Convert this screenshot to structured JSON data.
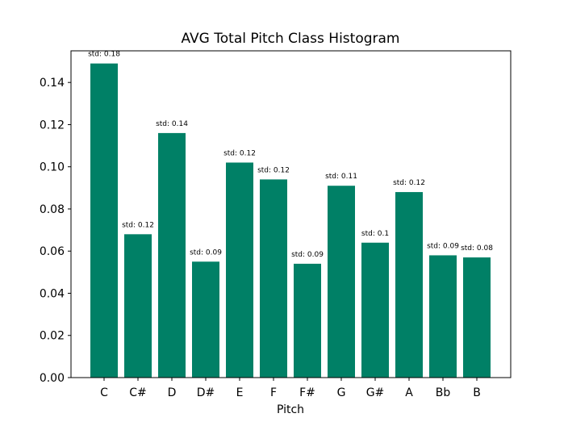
{
  "chart_data": {
    "type": "bar",
    "title": "AVG Total Pitch Class Histogram",
    "xlabel": "Pitch",
    "ylabel": "",
    "ylim": [
      0,
      0.155
    ],
    "yticks": [
      "0.00",
      "0.02",
      "0.04",
      "0.06",
      "0.08",
      "0.10",
      "0.12",
      "0.14"
    ],
    "grid": false,
    "legend": "none",
    "bar_color": "#008066",
    "categories": [
      "C",
      "C#",
      "D",
      "D#",
      "E",
      "F",
      "F#",
      "G",
      "G#",
      "A",
      "Bb",
      "B"
    ],
    "values": [
      0.149,
      0.068,
      0.116,
      0.055,
      0.102,
      0.094,
      0.054,
      0.091,
      0.064,
      0.088,
      0.058,
      0.057
    ],
    "annotations": [
      "std: 0.18",
      "std: 0.12",
      "std: 0.14",
      "std: 0.09",
      "std: 0.12",
      "std: 0.12",
      "std: 0.09",
      "std: 0.11",
      "std: 0.1",
      "std: 0.12",
      "std: 0.09",
      "std: 0.08"
    ]
  }
}
